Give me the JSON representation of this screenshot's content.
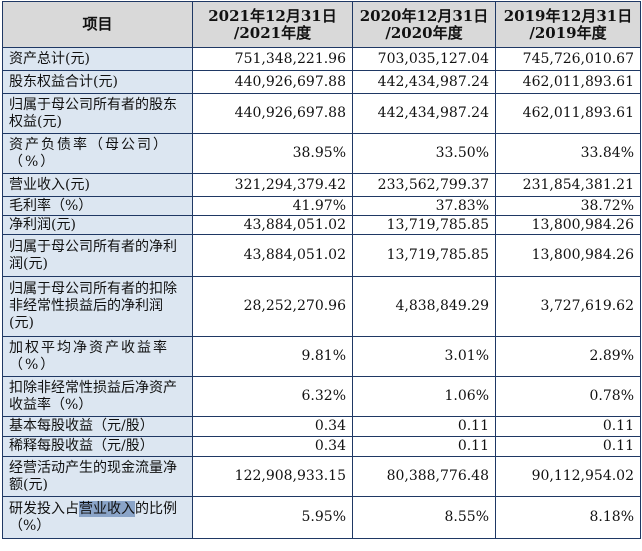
{
  "table": {
    "header": {
      "item": "项目",
      "col1_line1": "2021年12月31日",
      "col1_line2": "/2021年度",
      "col2_line1": "2020年12月31日",
      "col2_line2": "/2020年度",
      "col3_line1": "2019年12月31日",
      "col3_line2": "/2019年度"
    },
    "rows": [
      {
        "label": "资产总计(元)",
        "v2021": "751,348,221.96",
        "v2020": "703,035,127.04",
        "v2019": "745,726,010.67"
      },
      {
        "label": "股东权益合计(元)",
        "v2021": "440,926,697.88",
        "v2020": "442,434,987.24",
        "v2019": "462,011,893.61"
      },
      {
        "label": "归属于母公司所有者的股东权益(元)",
        "v2021": "440,926,697.88",
        "v2020": "442,434,987.24",
        "v2019": "462,011,893.61"
      },
      {
        "label": "资产负债率（母公司）（%）",
        "v2021": "38.95%",
        "v2020": "33.50%",
        "v2019": "33.84%"
      },
      {
        "label": "营业收入(元)",
        "v2021": "321,294,379.42",
        "v2020": "233,562,799.37",
        "v2019": "231,854,381.21"
      },
      {
        "label": "毛利率（%）",
        "v2021": "41.97%",
        "v2020": "37.83%",
        "v2019": "38.72%"
      },
      {
        "label": "净利润(元)",
        "v2021": "43,884,051.02",
        "v2020": "13,719,785.85",
        "v2019": "13,800,984.26"
      },
      {
        "label": "归属于母公司所有者的净利润(元)",
        "v2021": "43,884,051.02",
        "v2020": "13,719,785.85",
        "v2019": "13,800,984.26"
      },
      {
        "label": "归属于母公司所有者的扣除非经常性损益后的净利润(元)",
        "v2021": "28,252,270.96",
        "v2020": "4,838,849.29",
        "v2019": "3,727,619.62"
      },
      {
        "label": "加权平均净资产收益率（%）",
        "v2021": "9.81%",
        "v2020": "3.01%",
        "v2019": "2.89%"
      },
      {
        "label": "扣除非经常性损益后净资产收益率（%）",
        "v2021": "6.32%",
        "v2020": "1.06%",
        "v2019": "0.78%"
      },
      {
        "label": "基本每股收益（元/股）",
        "v2021": "0.34",
        "v2020": "0.11",
        "v2019": "0.11"
      },
      {
        "label": "稀释每股收益（元/股）",
        "v2021": "0.34",
        "v2020": "0.11",
        "v2019": "0.11"
      },
      {
        "label": "经营活动产生的现金流量净额(元)",
        "v2021": "122,908,933.15",
        "v2020": "80,388,776.48",
        "v2019": "90,112,954.02"
      },
      {
        "label_pre": "研发投入占",
        "label_hl": "营业收入",
        "label_post": "的比例（%）",
        "v2021": "5.95%",
        "v2020": "8.55%",
        "v2019": "8.18%"
      }
    ]
  }
}
